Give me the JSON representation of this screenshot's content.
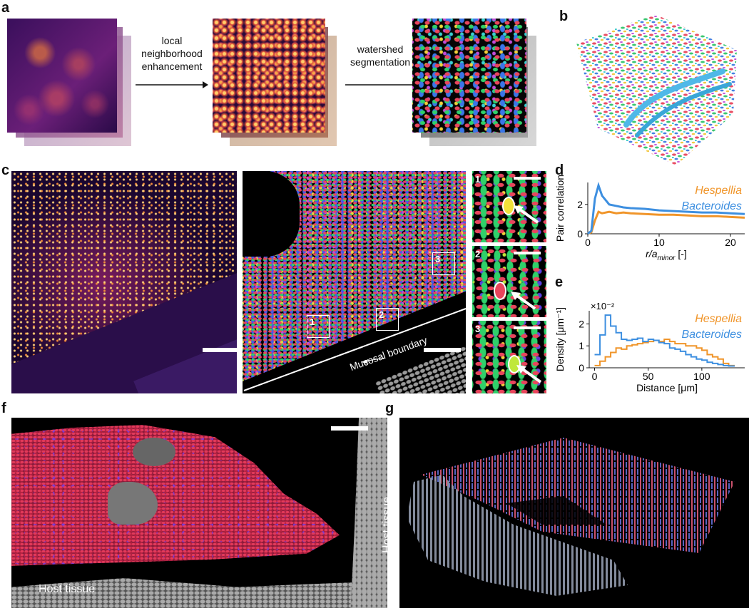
{
  "panels": {
    "a": {
      "label": "a",
      "step1": "local\nneighborhood\nenhancement",
      "step2": "watershed\nsegmentation"
    },
    "b": {
      "label": "b"
    },
    "c": {
      "label": "c",
      "mucosal_boundary": "Mucosal boundary",
      "boxes": [
        "1",
        "2",
        "3"
      ],
      "insets": [
        "1",
        "2",
        "3"
      ]
    },
    "d": {
      "label": "d"
    },
    "e": {
      "label": "e"
    },
    "f": {
      "label": "f",
      "host_tissue_bottom": "Host tissue",
      "host_tissue_right": "Host tissue"
    },
    "g": {
      "label": "g"
    }
  },
  "colors": {
    "hespellia": "#f0952a",
    "bacteroides": "#3d8fe0"
  },
  "chart_data": [
    {
      "id": "d",
      "type": "line",
      "xlabel": "r/a_minor [-]",
      "ylabel": "Pair correlation",
      "xlim": [
        0,
        22
      ],
      "ylim": [
        0,
        3.5
      ],
      "xticks": [
        "0",
        "10",
        "20"
      ],
      "yticks": [
        "0",
        "2"
      ],
      "series": [
        {
          "name": "Hespellia",
          "x": [
            0,
            0.5,
            1,
            1.5,
            2,
            3,
            4,
            5,
            6,
            8,
            10,
            12,
            14,
            16,
            18,
            20,
            22
          ],
          "values": [
            0,
            0.1,
            0.9,
            1.5,
            1.4,
            1.5,
            1.4,
            1.45,
            1.4,
            1.35,
            1.3,
            1.3,
            1.25,
            1.2,
            1.2,
            1.15,
            1.1
          ]
        },
        {
          "name": "Bacteroides",
          "x": [
            0,
            0.5,
            1,
            1.5,
            2,
            2.5,
            3,
            4,
            5,
            6,
            8,
            10,
            12,
            14,
            16,
            18,
            20,
            22
          ],
          "values": [
            0,
            0.2,
            2.4,
            3.3,
            2.6,
            2.3,
            2.0,
            1.9,
            1.8,
            1.75,
            1.7,
            1.6,
            1.55,
            1.5,
            1.45,
            1.45,
            1.4,
            1.35
          ]
        }
      ]
    },
    {
      "id": "e",
      "type": "line",
      "xlabel": "Distance [μm]",
      "ylabel": "Density [μm⁻¹]",
      "scale_note": "×10⁻²",
      "xlim": [
        -5,
        140
      ],
      "ylim": [
        0,
        2.6
      ],
      "xticks": [
        "0",
        "50",
        "100"
      ],
      "yticks": [
        "0",
        "1",
        "2"
      ],
      "series": [
        {
          "name": "Hespellia",
          "x": [
            0,
            5,
            10,
            15,
            20,
            25,
            30,
            35,
            40,
            45,
            50,
            55,
            60,
            65,
            70,
            75,
            80,
            85,
            90,
            95,
            100,
            105,
            110,
            115,
            120,
            125,
            130
          ],
          "values": [
            0.1,
            0.3,
            0.5,
            0.7,
            0.9,
            0.85,
            1.0,
            1.05,
            1.1,
            1.15,
            1.2,
            1.25,
            1.2,
            1.3,
            1.2,
            1.1,
            1.1,
            1.0,
            1.0,
            0.9,
            0.8,
            0.6,
            0.5,
            0.4,
            0.2,
            0.1,
            0.05
          ]
        },
        {
          "name": "Bacteroides",
          "x": [
            0,
            5,
            10,
            15,
            20,
            25,
            30,
            35,
            40,
            45,
            50,
            55,
            60,
            65,
            70,
            75,
            80,
            85,
            90,
            95,
            100,
            105,
            110,
            115,
            120,
            125,
            130
          ],
          "values": [
            0.6,
            1.5,
            2.4,
            1.9,
            1.6,
            1.3,
            1.25,
            1.3,
            1.35,
            1.2,
            1.3,
            1.25,
            1.15,
            1.1,
            0.9,
            0.85,
            0.75,
            0.6,
            0.5,
            0.4,
            0.35,
            0.25,
            0.2,
            0.15,
            0.1,
            0.08,
            0.05
          ]
        }
      ]
    }
  ]
}
